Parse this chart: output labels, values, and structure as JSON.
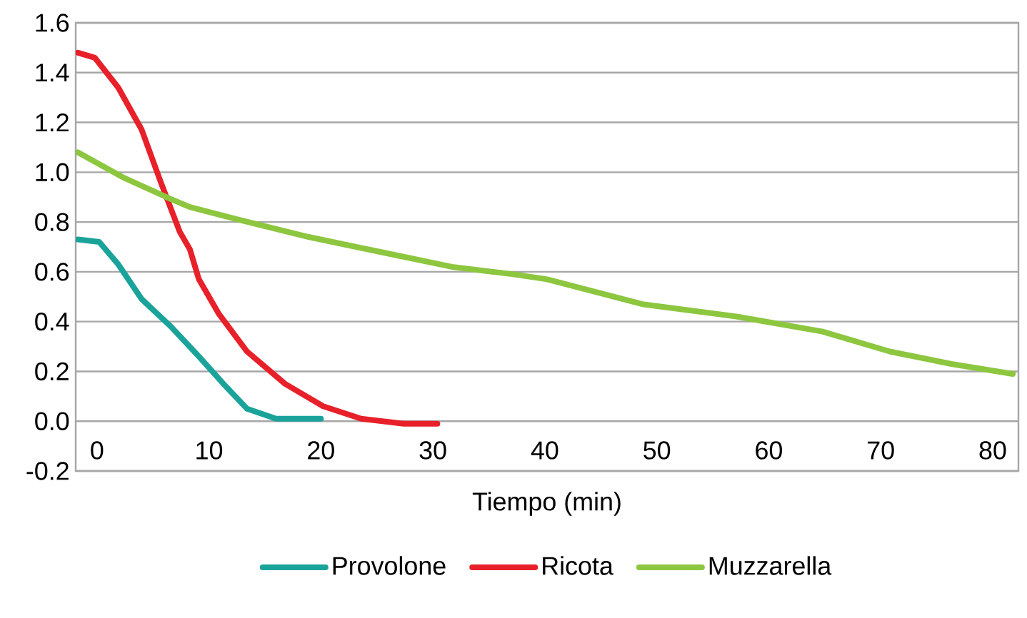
{
  "chart_data": {
    "type": "line",
    "xlabel": "Tiempo (min)",
    "xlim": [
      -1.9,
      82.3
    ],
    "ylim": [
      -0.2,
      1.6
    ],
    "xticks": [
      0,
      10,
      20,
      30,
      40,
      50,
      60,
      70,
      80
    ],
    "yticks": [
      -0.2,
      {
        "value": 0,
        "label": "0.0"
      },
      0.2,
      0.4,
      0.6,
      0.8,
      {
        "value": 1,
        "label": "1.0"
      },
      1.2,
      1.4,
      1.6
    ],
    "grid": "y",
    "legend": "bottom",
    "line_style": "solid",
    "series": [
      {
        "name": "Provolone",
        "color": "#1aa39a",
        "x": [
          -1.7,
          0.2,
          1.9,
          4.0,
          6.6,
          9.1,
          11.3,
          13.4,
          16.0,
          20.0
        ],
        "values": [
          0.73,
          0.72,
          0.63,
          0.49,
          0.38,
          0.26,
          0.15,
          0.05,
          0.01,
          0.01
        ]
      },
      {
        "name": "Ricota",
        "color": "#e8202a",
        "x": [
          -1.7,
          -0.2,
          1.9,
          4.0,
          5.7,
          7.4,
          8.3,
          9.1,
          10.9,
          13.4,
          16.8,
          20.2,
          23.6,
          27.4,
          30.4
        ],
        "values": [
          1.48,
          1.46,
          1.34,
          1.17,
          0.96,
          0.76,
          0.69,
          0.57,
          0.43,
          0.28,
          0.15,
          0.06,
          0.01,
          -0.01,
          -0.01
        ]
      },
      {
        "name": "Muzzarella",
        "color": "#8dc63f",
        "x": [
          -1.7,
          2.3,
          6.2,
          8.3,
          12.6,
          18.9,
          25.3,
          31.7,
          37.2,
          40.2,
          48.7,
          57.2,
          64.8,
          70.8,
          76.3,
          81.8
        ],
        "values": [
          1.08,
          0.98,
          0.9,
          0.86,
          0.81,
          0.74,
          0.68,
          0.62,
          0.59,
          0.57,
          0.47,
          0.42,
          0.36,
          0.28,
          0.23,
          0.19
        ]
      }
    ]
  }
}
